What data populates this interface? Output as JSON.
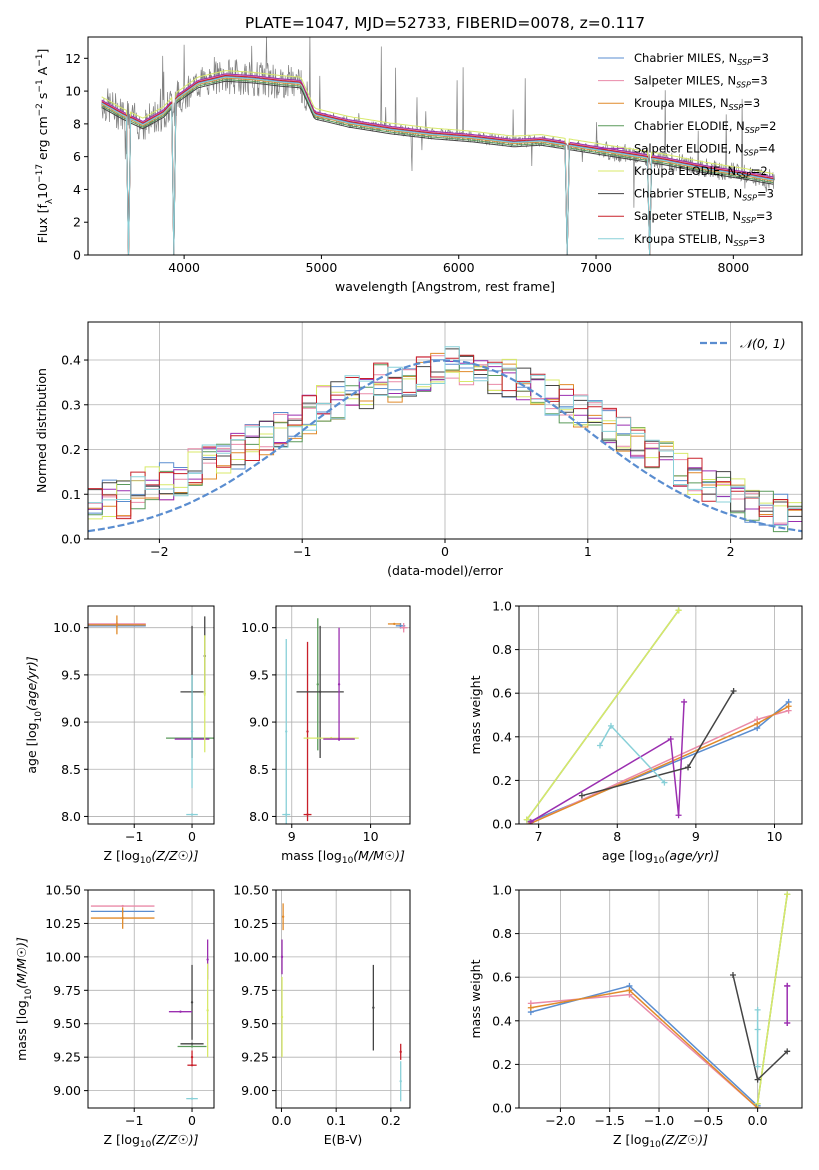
{
  "title": "PLATE=1047, MJD=52733, FIBERID=0078, z=0.117",
  "colors": {
    "chabrier_miles": "#5a8dd0",
    "salpeter_miles": "#e98aa8",
    "kroupa_miles": "#e08a2a",
    "chabrier_elodie": "#5a9a5a",
    "salpeter_elodie": "#9b2fb0",
    "kroupa_elodie": "#d8e96a",
    "chabrier_stelib": "#444444",
    "salpeter_stelib": "#c8202a",
    "kroupa_stelib": "#88d0d8",
    "data": "#808080",
    "normal": "#5a8dd0",
    "grid": "#b0b0b0"
  },
  "legend": [
    {
      "key": "chabrier_miles",
      "label": "Chabrier MILES, N",
      "sub": "SSP",
      "tail": "=3"
    },
    {
      "key": "salpeter_miles",
      "label": "Salpeter MILES, N",
      "sub": "SSP",
      "tail": "=3"
    },
    {
      "key": "kroupa_miles",
      "label": "Kroupa MILES, N",
      "sub": "SSP",
      "tail": "=3"
    },
    {
      "key": "chabrier_elodie",
      "label": "Chabrier ELODIE, N",
      "sub": "SSP",
      "tail": "=2"
    },
    {
      "key": "salpeter_elodie",
      "label": "Salpeter ELODIE, N",
      "sub": "SSP",
      "tail": "=4"
    },
    {
      "key": "kroupa_elodie",
      "label": "Kroupa ELODIE, N",
      "sub": "SSP",
      "tail": "=2"
    },
    {
      "key": "chabrier_stelib",
      "label": "Chabrier STELIB, N",
      "sub": "SSP",
      "tail": "=3"
    },
    {
      "key": "salpeter_stelib",
      "label": "Salpeter STELIB, N",
      "sub": "SSP",
      "tail": "=3"
    },
    {
      "key": "kroupa_stelib",
      "label": "Kroupa STELIB, N",
      "sub": "SSP",
      "tail": "=3"
    }
  ],
  "chart_data": [
    {
      "id": "spectrum",
      "type": "line",
      "xlabel": "wavelength [Angstrom, rest frame]",
      "ylabel_parts": [
        "Flux [f",
        "λ",
        "10",
        "−17",
        " erg cm",
        "−2",
        " s",
        "−1",
        " A",
        "−1",
        "]"
      ],
      "xlim": [
        3300,
        8500
      ],
      "ylim": [
        0,
        13.3
      ],
      "xticks": [
        4000,
        5000,
        6000,
        7000,
        8000
      ],
      "yticks": [
        0,
        2,
        4,
        6,
        8,
        10,
        12
      ],
      "model_continuum": {
        "x": [
          3400,
          3550,
          3700,
          3850,
          3950,
          4100,
          4300,
          4500,
          4700,
          4850,
          4950,
          5200,
          5500,
          5800,
          6100,
          6400,
          6600,
          6900,
          7200,
          7500,
          7800,
          8100,
          8300
        ],
        "y": [
          9.3,
          8.6,
          8.0,
          8.7,
          9.6,
          10.5,
          10.9,
          10.8,
          10.6,
          10.5,
          8.6,
          8.1,
          7.7,
          7.4,
          7.2,
          6.9,
          7.0,
          6.6,
          6.2,
          5.8,
          5.3,
          4.9,
          4.6
        ]
      },
      "model_dropouts": [
        3600,
        3920,
        6790,
        7390
      ],
      "series_offsets": {
        "chabrier_miles": 0.0,
        "salpeter_miles": 0.1,
        "kroupa_miles": -0.1,
        "chabrier_elodie": -0.2,
        "salpeter_elodie": 0.15,
        "kroupa_elodie": 0.35,
        "chabrier_stelib": -0.3,
        "salpeter_stelib": 0.05,
        "kroupa_stelib": -0.05
      },
      "series_order": [
        "chabrier_miles",
        "salpeter_miles",
        "kroupa_miles",
        "chabrier_elodie",
        "salpeter_elodie",
        "kroupa_elodie",
        "chabrier_stelib",
        "salpeter_stelib",
        "kroupa_stelib"
      ]
    },
    {
      "id": "residuals",
      "type": "histogram",
      "xlabel": "(data-model)/error",
      "ylabel": "Normed distribution",
      "xlim": [
        -2.5,
        2.5
      ],
      "ylim": [
        0,
        0.485
      ],
      "xticks": [
        -2,
        -1,
        0,
        1,
        2
      ],
      "yticks": [
        0.0,
        0.1,
        0.2,
        0.3,
        0.4
      ],
      "normal_label": "𝒩(0, 1)",
      "bin_width": 0.1,
      "base_bins": [
        0.05,
        0.05,
        0.05,
        0.06,
        0.07,
        0.08,
        0.09,
        0.09,
        0.11,
        0.12,
        0.13,
        0.14,
        0.16,
        0.17,
        0.19,
        0.2,
        0.22,
        0.23,
        0.25,
        0.26,
        0.28,
        0.3,
        0.31,
        0.32,
        0.33,
        0.35,
        0.35,
        0.36,
        0.37,
        0.38,
        0.39,
        0.38,
        0.38,
        0.37,
        0.36,
        0.35,
        0.33,
        0.32,
        0.3,
        0.29,
        0.27,
        0.25,
        0.23,
        0.21,
        0.19,
        0.18,
        0.16,
        0.14,
        0.12,
        0.11,
        0.09,
        0.08,
        0.07,
        0.06,
        0.05,
        0.04,
        0.03,
        0.03,
        0.03,
        0.02
      ]
    },
    {
      "id": "age_vs_Z",
      "type": "errorbar",
      "xlabel_main": "Z [log",
      "xlabel_sub": "10",
      "xlabel_tail": "(Z/Z☉)]",
      "ylabel": "age  [log10(age/yr)]",
      "xlim": [
        -1.8,
        0.38
      ],
      "ylim": [
        7.92,
        10.23
      ],
      "xticks": [
        -1,
        0
      ],
      "yticks": [
        8.0,
        8.5,
        9.0,
        9.5,
        10.0
      ],
      "points": [
        {
          "s": "chabrier_miles",
          "x": -1.3,
          "y": 10.02,
          "xerr": 0.5,
          "yerr": 0.0
        },
        {
          "s": "salpeter_miles",
          "x": -1.3,
          "y": 10.04,
          "xerr": 0.5,
          "yerr": 0.02
        },
        {
          "s": "kroupa_miles",
          "x": -1.3,
          "y": 10.03,
          "xerr": 0.5,
          "yerr": 0.1
        },
        {
          "s": "chabrier_stelib",
          "x": 0.0,
          "y": 9.32,
          "xerr": 0.2,
          "yerr": 0.7
        },
        {
          "s": "chabrier_stelib",
          "x": 0.22,
          "y": 9.7,
          "xerr": 0.0,
          "yerr": 0.42
        },
        {
          "s": "chabrier_elodie",
          "x": 0.0,
          "y": 8.83,
          "xerr": 0.45,
          "yerr": 0.0
        },
        {
          "s": "salpeter_elodie",
          "x": 0.0,
          "y": 8.82,
          "xerr": 0.3,
          "yerr": 0.0
        },
        {
          "s": "kroupa_elodie",
          "x": 0.22,
          "y": 9.3,
          "xerr": 0.0,
          "yerr": 0.62
        },
        {
          "s": "kroupa_stelib",
          "x": 0.0,
          "y": 8.9,
          "xerr": 0.0,
          "yerr": 0.6
        },
        {
          "s": "kroupa_stelib",
          "x": 0.0,
          "y": 8.02,
          "xerr": 0.1,
          "yerr": 0.0
        }
      ]
    },
    {
      "id": "age_vs_mass",
      "type": "errorbar",
      "xlabel_main": "mass [log",
      "xlabel_sub": "10",
      "xlabel_tail": "(M/M☉)]",
      "xlim": [
        8.8,
        10.5
      ],
      "ylim": [
        7.92,
        10.23
      ],
      "xticks": [
        9,
        10
      ],
      "yticks": [
        8.0,
        8.5,
        9.0,
        9.5,
        10.0
      ],
      "points": [
        {
          "s": "kroupa_stelib",
          "x": 8.93,
          "y": 8.9,
          "xerr": 0.0,
          "yerr": 0.98
        },
        {
          "s": "kroupa_stelib",
          "x": 8.93,
          "y": 8.02,
          "xerr": 0.05,
          "yerr": 0.0
        },
        {
          "s": "salpeter_stelib",
          "x": 9.2,
          "y": 8.9,
          "xerr": 0.0,
          "yerr": 0.95
        },
        {
          "s": "salpeter_stelib",
          "x": 9.2,
          "y": 8.02,
          "xerr": 0.05,
          "yerr": 0.0
        },
        {
          "s": "chabrier_elodie",
          "x": 9.33,
          "y": 9.4,
          "xerr": 0.0,
          "yerr": 0.7
        },
        {
          "s": "chabrier_stelib",
          "x": 9.36,
          "y": 9.32,
          "xerr": 0.3,
          "yerr": 0.7
        },
        {
          "s": "kroupa_elodie",
          "x": 9.5,
          "y": 8.83,
          "xerr": 0.35,
          "yerr": 0.0
        },
        {
          "s": "salpeter_elodie",
          "x": 9.6,
          "y": 8.82,
          "xerr": 0.2,
          "yerr": 0.0
        },
        {
          "s": "salpeter_elodie",
          "x": 9.6,
          "y": 9.4,
          "xerr": 0.0,
          "yerr": 0.6
        },
        {
          "s": "chabrier_miles",
          "x": 10.38,
          "y": 10.02,
          "xerr": 0.06,
          "yerr": 0.03
        },
        {
          "s": "salpeter_miles",
          "x": 10.42,
          "y": 10.0,
          "xerr": 0.05,
          "yerr": 0.05
        },
        {
          "s": "kroupa_miles",
          "x": 10.3,
          "y": 10.04,
          "xerr": 0.08,
          "yerr": 0.0
        }
      ]
    },
    {
      "id": "weight_vs_age",
      "type": "line",
      "xlabel_main": "age  [log",
      "xlabel_sub": "10",
      "xlabel_tail": "(age/yr)]",
      "ylabel": "mass weight",
      "xlim": [
        6.75,
        10.35
      ],
      "ylim": [
        0.0,
        1.0
      ],
      "xticks": [
        7,
        8,
        9,
        10
      ],
      "yticks": [
        0.0,
        0.2,
        0.4,
        0.6,
        0.8,
        1.0
      ],
      "series": [
        {
          "s": "chabrier_miles",
          "x": [
            6.88,
            9.78,
            10.18
          ],
          "y": [
            0.01,
            0.44,
            0.56
          ]
        },
        {
          "s": "salpeter_miles",
          "x": [
            6.88,
            9.78,
            10.18
          ],
          "y": [
            0.0,
            0.48,
            0.52
          ]
        },
        {
          "s": "kroupa_miles",
          "x": [
            6.88,
            9.78,
            10.18
          ],
          "y": [
            0.0,
            0.46,
            0.54
          ]
        },
        {
          "s": "chabrier_elodie",
          "x": [
            6.85,
            8.78
          ],
          "y": [
            0.02,
            0.98
          ]
        },
        {
          "s": "salpeter_elodie",
          "x": [
            6.9,
            8.68,
            8.78,
            8.85
          ],
          "y": [
            0.01,
            0.39,
            0.04,
            0.56
          ]
        },
        {
          "s": "kroupa_elodie",
          "x": [
            6.85,
            8.78
          ],
          "y": [
            0.02,
            0.98
          ]
        },
        {
          "s": "chabrier_stelib",
          "x": [
            7.55,
            8.9,
            9.48
          ],
          "y": [
            0.13,
            0.26,
            0.61
          ]
        },
        {
          "s": "kroupa_stelib",
          "x": [
            7.78,
            7.92,
            8.6
          ],
          "y": [
            0.36,
            0.45,
            0.19
          ]
        }
      ]
    },
    {
      "id": "mass_vs_Z",
      "type": "errorbar",
      "xlabel_main": "Z [log",
      "xlabel_sub": "10",
      "xlabel_tail": "(Z/Z☉)]",
      "ylabel": "mass [log10(M/M☉)]",
      "xlim": [
        -1.8,
        0.38
      ],
      "ylim": [
        8.87,
        10.5
      ],
      "xticks": [
        -1,
        0
      ],
      "yticks": [
        9.0,
        9.25,
        9.5,
        9.75,
        10.0,
        10.25,
        10.5
      ],
      "points": [
        {
          "s": "salpeter_miles",
          "x": -1.2,
          "y": 10.38,
          "xerr": 0.55,
          "yerr": 0.0
        },
        {
          "s": "chabrier_miles",
          "x": -1.2,
          "y": 10.34,
          "xerr": 0.55,
          "yerr": 0.0
        },
        {
          "s": "kroupa_miles",
          "x": -1.2,
          "y": 10.29,
          "xerr": 0.55,
          "yerr": 0.08
        },
        {
          "s": "chabrier_stelib",
          "x": 0.0,
          "y": 9.66,
          "xerr": 0.0,
          "yerr": 0.28
        },
        {
          "s": "chabrier_stelib",
          "x": 0.0,
          "y": 9.35,
          "xerr": 0.2,
          "yerr": 0.0
        },
        {
          "s": "salpeter_elodie",
          "x": -0.2,
          "y": 9.59,
          "xerr": 0.2,
          "yerr": 0.0
        },
        {
          "s": "salpeter_elodie",
          "x": 0.27,
          "y": 9.98,
          "xerr": 0.0,
          "yerr": 0.15
        },
        {
          "s": "chabrier_elodie",
          "x": 0.0,
          "y": 9.33,
          "xerr": 0.25,
          "yerr": 0.0
        },
        {
          "s": "kroupa_elodie",
          "x": 0.27,
          "y": 9.6,
          "xerr": 0.0,
          "yerr": 0.35
        },
        {
          "s": "salpeter_stelib",
          "x": 0.0,
          "y": 9.25,
          "xerr": 0.0,
          "yerr": 0.05
        },
        {
          "s": "salpeter_stelib",
          "x": 0.0,
          "y": 9.19,
          "xerr": 0.08,
          "yerr": 0.0
        },
        {
          "s": "kroupa_stelib",
          "x": 0.0,
          "y": 8.94,
          "xerr": 0.1,
          "yerr": 0.0
        }
      ]
    },
    {
      "id": "mass_vs_ebv",
      "type": "errorbar",
      "xlabel": "E(B-V)",
      "xlim": [
        -0.01,
        0.235
      ],
      "ylim": [
        8.87,
        10.5
      ],
      "xticks": [
        0.0,
        0.1,
        0.2
      ],
      "yticks": [
        9.0,
        9.25,
        9.5,
        9.75,
        10.0,
        10.25,
        10.5
      ],
      "points": [
        {
          "s": "kroupa_miles",
          "x": 0.003,
          "y": 10.3,
          "xerr": 0.0,
          "yerr": 0.1
        },
        {
          "s": "salpeter_elodie",
          "x": 0.001,
          "y": 10.0,
          "xerr": 0.0,
          "yerr": 0.13
        },
        {
          "s": "kroupa_elodie",
          "x": 0.001,
          "y": 9.55,
          "xerr": 0.0,
          "yerr": 0.3
        },
        {
          "s": "chabrier_stelib",
          "x": 0.168,
          "y": 9.62,
          "xerr": 0.0,
          "yerr": 0.32
        },
        {
          "s": "salpeter_stelib",
          "x": 0.218,
          "y": 9.29,
          "xerr": 0.0,
          "yerr": 0.06
        },
        {
          "s": "kroupa_stelib",
          "x": 0.218,
          "y": 9.07,
          "xerr": 0.0,
          "yerr": 0.15
        }
      ]
    },
    {
      "id": "weight_vs_Z",
      "type": "line",
      "xlabel_main": "Z [log",
      "xlabel_sub": "10",
      "xlabel_tail": "(Z/Z☉)]",
      "ylabel": "mass weight",
      "xlim": [
        -2.42,
        0.45
      ],
      "ylim": [
        0.0,
        1.0
      ],
      "xticks": [
        -2.0,
        -1.5,
        -1.0,
        -0.5,
        0.0
      ],
      "yticks": [
        0.0,
        0.2,
        0.4,
        0.6,
        0.8,
        1.0
      ],
      "series": [
        {
          "s": "chabrier_miles",
          "x": [
            -2.3,
            -1.3,
            0.0
          ],
          "y": [
            0.44,
            0.56,
            0.01
          ]
        },
        {
          "s": "salpeter_miles",
          "x": [
            -2.3,
            -1.3,
            0.0
          ],
          "y": [
            0.48,
            0.52,
            0.0
          ]
        },
        {
          "s": "kroupa_miles",
          "x": [
            -2.3,
            -1.3,
            0.0
          ],
          "y": [
            0.46,
            0.54,
            0.0
          ]
        },
        {
          "s": "chabrier_elodie",
          "x": [
            0.0,
            0.3
          ],
          "y": [
            0.02,
            0.98
          ]
        },
        {
          "s": "kroupa_elodie",
          "x": [
            0.0,
            0.3
          ],
          "y": [
            0.02,
            0.98
          ]
        },
        {
          "s": "salpeter_elodie",
          "x": [
            0.3,
            0.3,
            0.3,
            0.3
          ],
          "y": [
            0.56,
            0.39,
            0.56,
            0.39
          ]
        },
        {
          "s": "chabrier_stelib",
          "x": [
            -0.25,
            0.0,
            0.3
          ],
          "y": [
            0.61,
            0.13,
            0.26
          ]
        },
        {
          "s": "kroupa_stelib",
          "x": [
            0.0,
            0.0,
            0.0
          ],
          "y": [
            0.45,
            0.36,
            0.19
          ]
        }
      ]
    }
  ]
}
